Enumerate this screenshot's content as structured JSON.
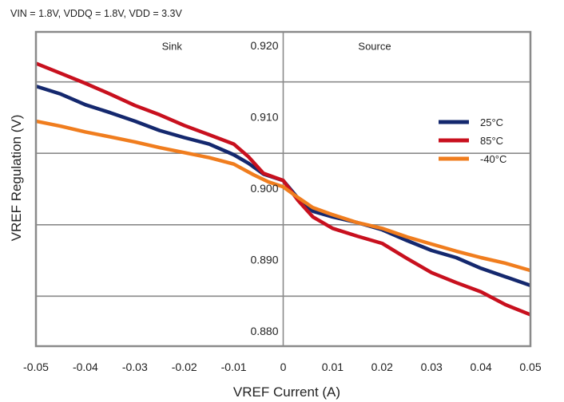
{
  "chart_data": {
    "type": "line",
    "title": "",
    "subtitle": "VIN = 1.8V, VDDQ = 1.8V,  VDD = 3.3V",
    "xlabel": "VREF Current (A)",
    "ylabel": "VREF Regulation (V)",
    "xlim": [
      -0.05,
      0.05
    ],
    "ylim": [
      0.878,
      0.922
    ],
    "x_ticks": [
      "-0.05",
      "-0.04",
      "-0.03",
      "-0.02",
      "-0.01",
      "0",
      "0.01",
      "0.02",
      "0.03",
      "0.04",
      "0.05"
    ],
    "y_ticks": [
      {
        "value": 0.92,
        "label": "0.920"
      },
      {
        "value": 0.91,
        "label": "0.910"
      },
      {
        "value": 0.9,
        "label": "0.900"
      },
      {
        "value": 0.89,
        "label": "0.890"
      },
      {
        "value": 0.88,
        "label": "0.880"
      }
    ],
    "grid": true,
    "annotations": [
      {
        "text": "Sink",
        "x": -0.0225,
        "y": 0.9195
      },
      {
        "text": "Source",
        "x": 0.0185,
        "y": 0.9195
      }
    ],
    "legend_position": "top-right",
    "series": [
      {
        "name": "25°C",
        "color": "#14286e",
        "points": [
          [
            -0.05,
            0.9144
          ],
          [
            -0.045,
            0.9133
          ],
          [
            -0.04,
            0.9118
          ],
          [
            -0.035,
            0.9107
          ],
          [
            -0.03,
            0.9095
          ],
          [
            -0.025,
            0.9082
          ],
          [
            -0.02,
            0.9072
          ],
          [
            -0.015,
            0.9063
          ],
          [
            -0.01,
            0.9048
          ],
          [
            -0.007,
            0.9036
          ],
          [
            -0.004,
            0.9021
          ],
          [
            0,
            0.9012
          ],
          [
            0.003,
            0.8987
          ],
          [
            0.006,
            0.8969
          ],
          [
            0.01,
            0.8961
          ],
          [
            0.015,
            0.8953
          ],
          [
            0.02,
            0.8943
          ],
          [
            0.025,
            0.8928
          ],
          [
            0.03,
            0.8914
          ],
          [
            0.035,
            0.8904
          ],
          [
            0.04,
            0.8889
          ],
          [
            0.045,
            0.8877
          ],
          [
            0.05,
            0.8865
          ]
        ]
      },
      {
        "name": "85°C",
        "color": "#c8101e",
        "points": [
          [
            -0.05,
            0.9176
          ],
          [
            -0.045,
            0.9162
          ],
          [
            -0.04,
            0.9148
          ],
          [
            -0.035,
            0.9133
          ],
          [
            -0.03,
            0.9117
          ],
          [
            -0.025,
            0.9104
          ],
          [
            -0.02,
            0.9089
          ],
          [
            -0.015,
            0.9076
          ],
          [
            -0.01,
            0.9063
          ],
          [
            -0.007,
            0.9045
          ],
          [
            -0.004,
            0.9022
          ],
          [
            0,
            0.9012
          ],
          [
            0.003,
            0.8984
          ],
          [
            0.006,
            0.8961
          ],
          [
            0.01,
            0.8945
          ],
          [
            0.015,
            0.8934
          ],
          [
            0.02,
            0.8924
          ],
          [
            0.025,
            0.8903
          ],
          [
            0.03,
            0.8883
          ],
          [
            0.035,
            0.8869
          ],
          [
            0.04,
            0.8856
          ],
          [
            0.045,
            0.8838
          ],
          [
            0.05,
            0.8824
          ]
        ]
      },
      {
        "name": "-40°C",
        "color": "#f07d1e",
        "points": [
          [
            -0.05,
            0.9095
          ],
          [
            -0.045,
            0.9088
          ],
          [
            -0.04,
            0.908
          ],
          [
            -0.035,
            0.9073
          ],
          [
            -0.03,
            0.9066
          ],
          [
            -0.025,
            0.9058
          ],
          [
            -0.02,
            0.9051
          ],
          [
            -0.015,
            0.9044
          ],
          [
            -0.01,
            0.9035
          ],
          [
            -0.006,
            0.902
          ],
          [
            -0.003,
            0.901
          ],
          [
            0,
            0.9003
          ],
          [
            0.003,
            0.8988
          ],
          [
            0.006,
            0.8974
          ],
          [
            0.01,
            0.8964
          ],
          [
            0.015,
            0.8953
          ],
          [
            0.02,
            0.8945
          ],
          [
            0.025,
            0.8933
          ],
          [
            0.03,
            0.8923
          ],
          [
            0.035,
            0.8913
          ],
          [
            0.04,
            0.8904
          ],
          [
            0.045,
            0.8896
          ],
          [
            0.05,
            0.8886
          ]
        ]
      }
    ]
  }
}
